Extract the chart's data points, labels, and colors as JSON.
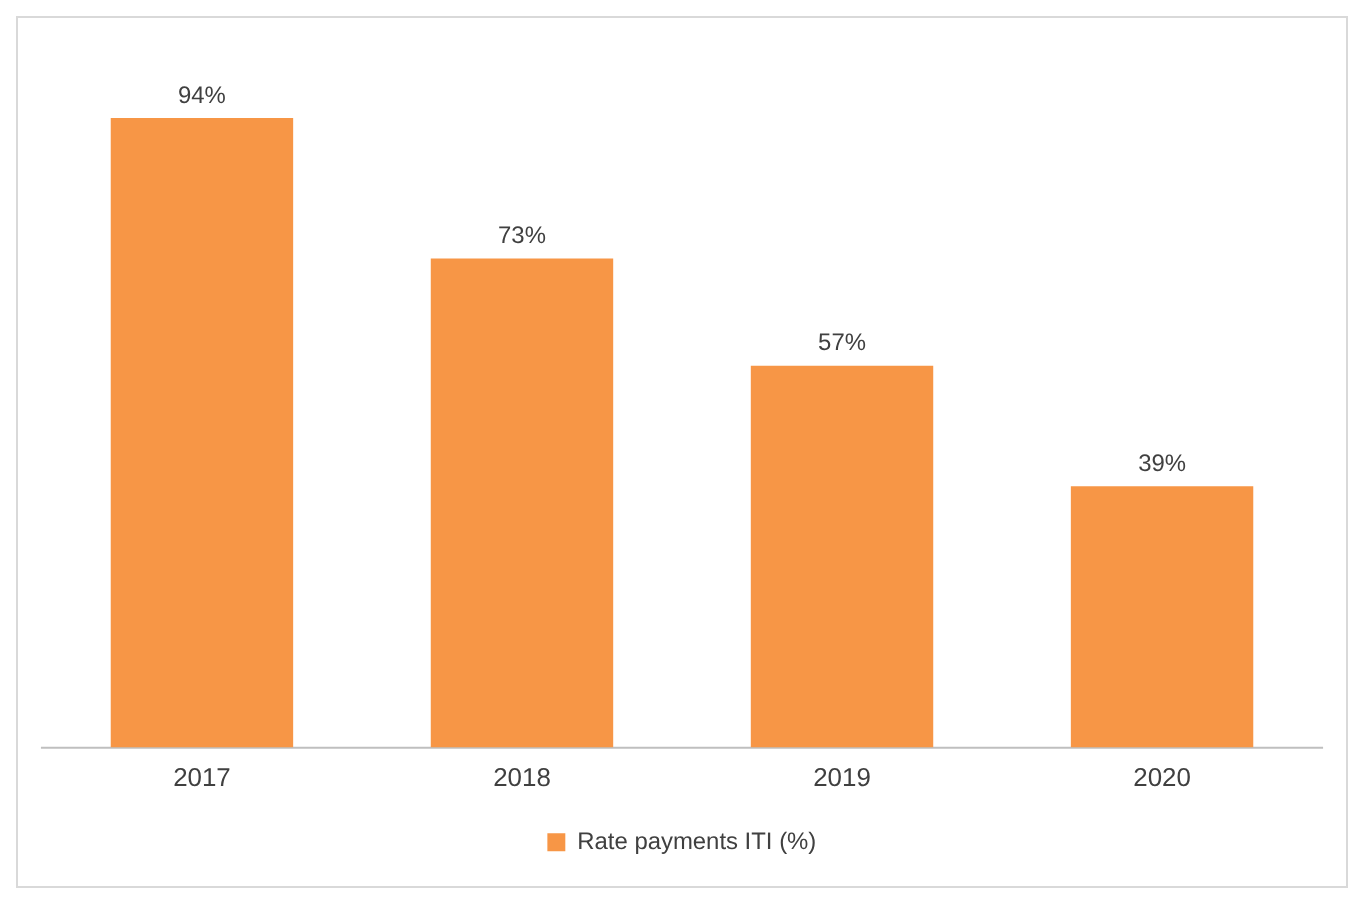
{
  "chart_data": {
    "type": "bar",
    "categories": [
      "2017",
      "2018",
      "2019",
      "2020"
    ],
    "series": [
      {
        "name": "Rate payments ITI (%)",
        "color": "#f79646",
        "values": [
          94,
          73,
          57,
          39
        ],
        "value_labels": [
          "94%",
          "73%",
          "57%",
          "39%"
        ]
      }
    ],
    "tick_labels": "x",
    "grid": false,
    "legend": "bottom"
  }
}
